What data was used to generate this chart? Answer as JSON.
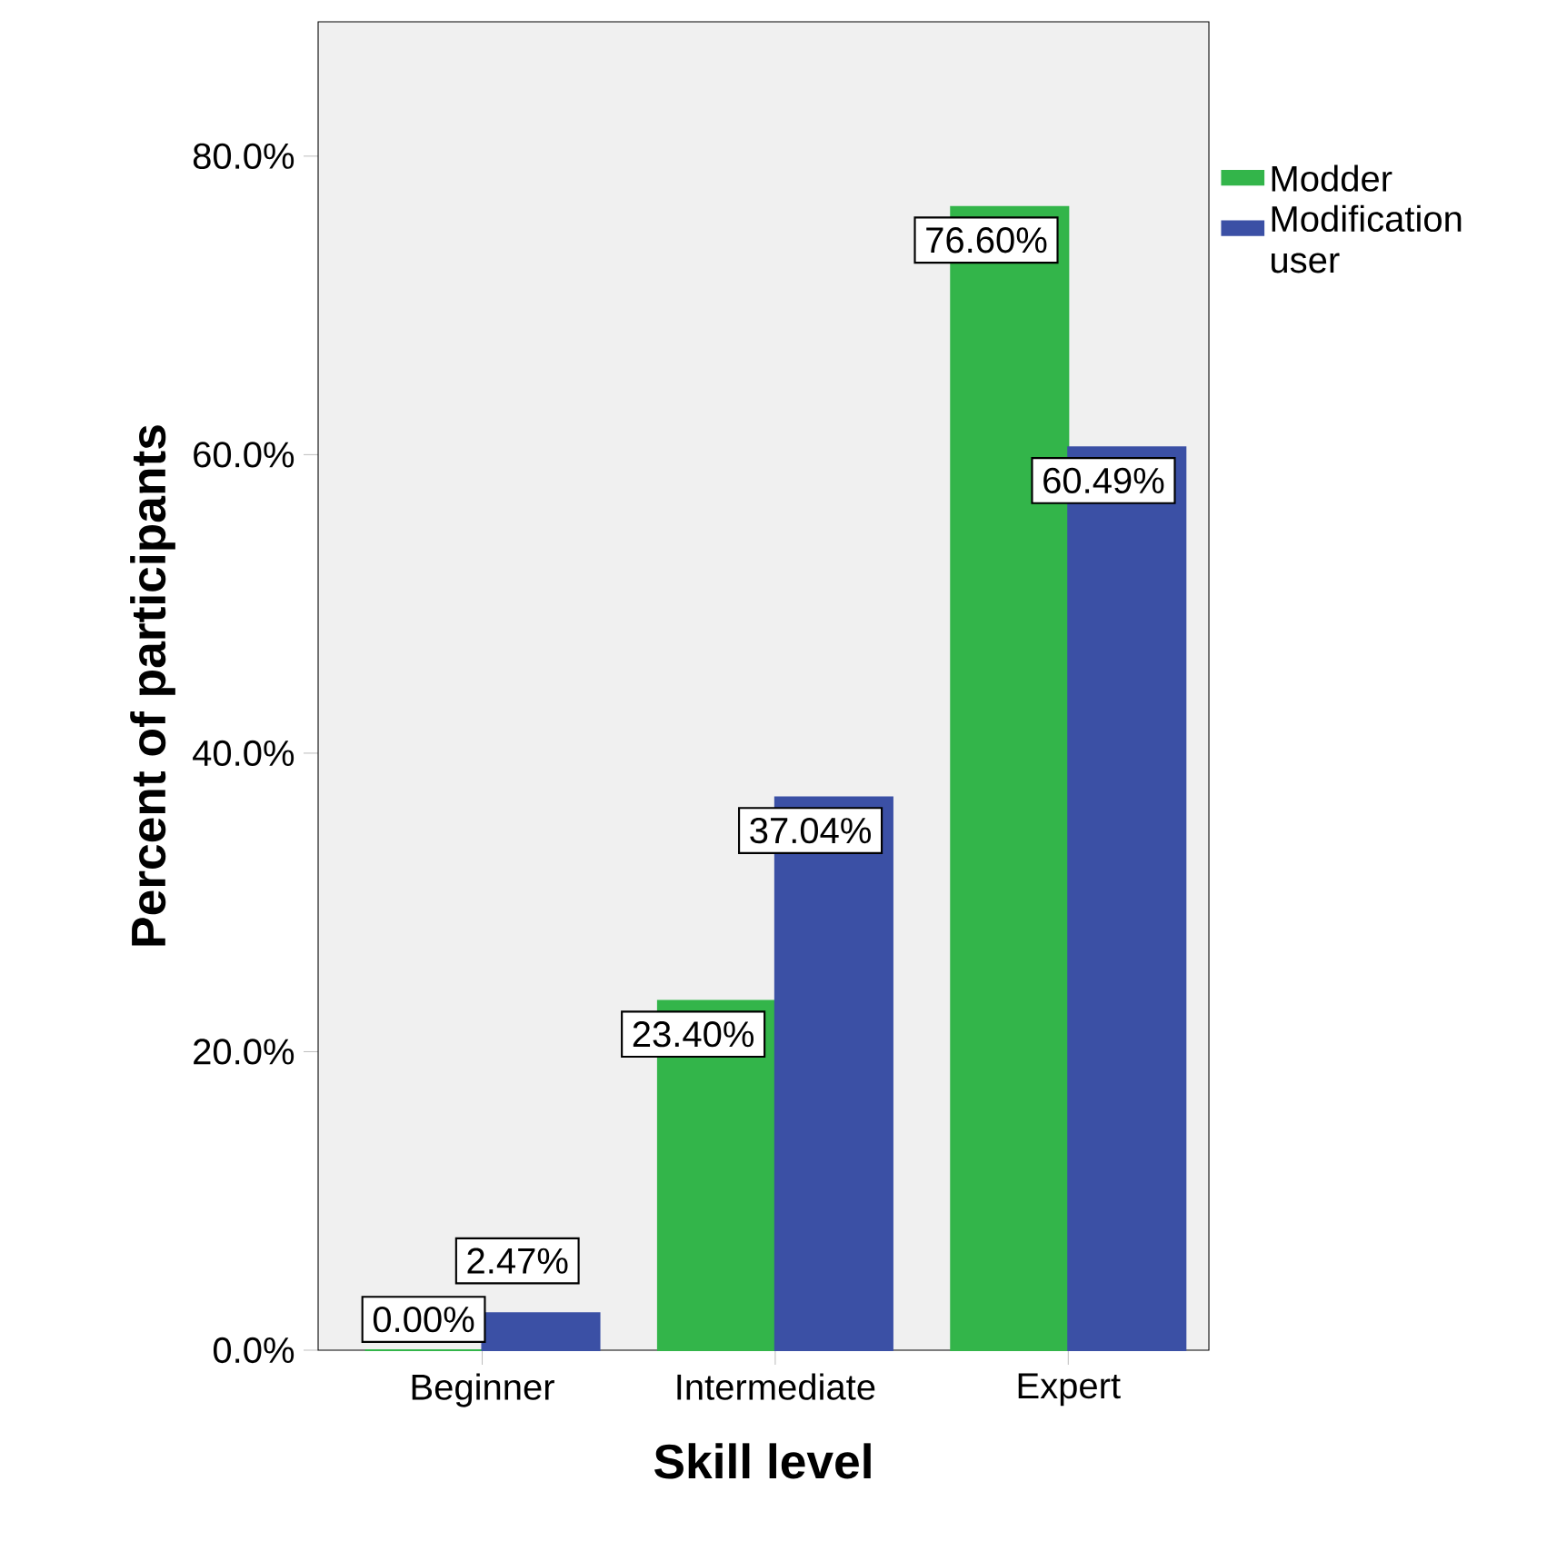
{
  "chart_data": {
    "type": "bar",
    "xlabel": "Skill level",
    "ylabel": "Percent of participants",
    "categories": [
      "Beginner",
      "Intermediate",
      "Expert"
    ],
    "series": [
      {
        "name": "Modder",
        "color": "#33b54a",
        "values": [
          0,
          23.4,
          76.6
        ],
        "value_labels": [
          "0.00%",
          "23.40%",
          "76.60%"
        ]
      },
      {
        "name": "Modification user",
        "color": "#3b50a5",
        "values": [
          2.47,
          37.04,
          60.49
        ],
        "value_labels": [
          "2.47%",
          "37.04%",
          "60.49%"
        ]
      }
    ],
    "ylim": [
      0,
      89
    ],
    "yticks": [
      {
        "value": 0,
        "label": "0.0%"
      },
      {
        "value": 20,
        "label": "20.0%"
      },
      {
        "value": 40,
        "label": "40.0%"
      },
      {
        "value": 60,
        "label": "60.0%"
      },
      {
        "value": 80,
        "label": "80.0%"
      }
    ],
    "grid": false,
    "legend": "right"
  }
}
